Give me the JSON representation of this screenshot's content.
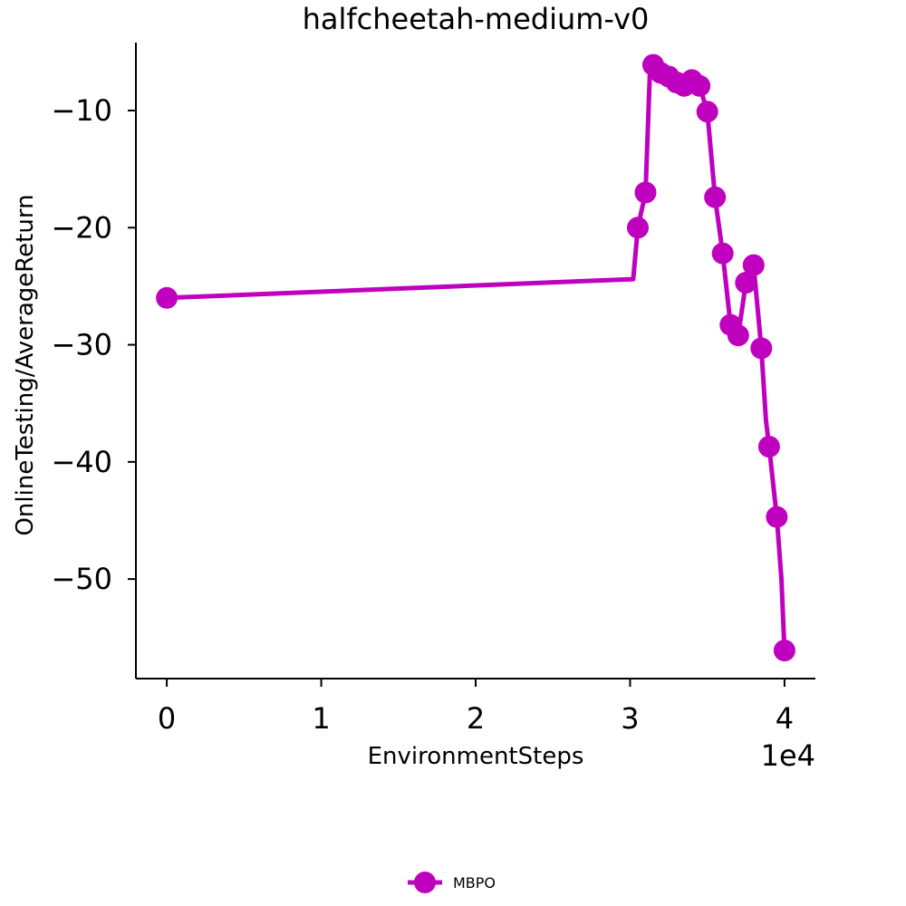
{
  "chart_data": {
    "type": "line",
    "title": "halfcheetah-medium-v0",
    "xlabel": "EnvironmentSteps",
    "ylabel": "OnlineTesting/AverageReturn",
    "x_offset_text": "1e4",
    "xlim": [
      -2000,
      42000
    ],
    "ylim": [
      -58.5,
      -4.2
    ],
    "x_ticks": [
      0,
      10000,
      20000,
      30000,
      40000
    ],
    "x_tick_labels": [
      "0",
      "1",
      "2",
      "3",
      "4"
    ],
    "y_ticks": [
      -10,
      -20,
      -30,
      -40,
      -50
    ],
    "y_tick_labels": [
      "−10",
      "−20",
      "−30",
      "−40",
      "−50"
    ],
    "grid": false,
    "legend_position": "bottom-center",
    "series": [
      {
        "name": "MBPO",
        "color": "#bf00bf",
        "line": [
          [
            0,
            -26.0
          ],
          [
            30200,
            -24.4
          ],
          [
            30500,
            -20.0
          ],
          [
            31000,
            -17.0
          ],
          [
            31300,
            -6.2
          ],
          [
            31500,
            -6.1
          ],
          [
            32000,
            -6.8
          ],
          [
            32500,
            -7.1
          ],
          [
            33000,
            -7.6
          ],
          [
            33500,
            -7.9
          ],
          [
            34000,
            -7.4
          ],
          [
            34500,
            -7.9
          ],
          [
            35000,
            -10.1
          ],
          [
            35500,
            -17.4
          ],
          [
            36000,
            -22.2
          ],
          [
            36500,
            -28.3
          ],
          [
            37000,
            -29.2
          ],
          [
            37500,
            -24.7
          ],
          [
            38000,
            -23.2
          ],
          [
            38500,
            -30.3
          ],
          [
            38800,
            -36.5
          ],
          [
            39000,
            -38.7
          ],
          [
            39500,
            -44.7
          ],
          [
            39800,
            -50.0
          ],
          [
            40000,
            -56.1
          ]
        ],
        "markers": [
          [
            0,
            -26.0
          ],
          [
            30500,
            -20.0
          ],
          [
            31000,
            -17.0
          ],
          [
            31500,
            -6.1
          ],
          [
            32000,
            -6.8
          ],
          [
            32500,
            -7.1
          ],
          [
            33000,
            -7.6
          ],
          [
            33500,
            -7.9
          ],
          [
            34000,
            -7.4
          ],
          [
            34500,
            -7.9
          ],
          [
            35000,
            -10.1
          ],
          [
            35500,
            -17.4
          ],
          [
            36000,
            -22.2
          ],
          [
            36500,
            -28.3
          ],
          [
            37000,
            -29.2
          ],
          [
            37500,
            -24.7
          ],
          [
            38000,
            -23.2
          ],
          [
            38500,
            -30.3
          ],
          [
            39000,
            -38.7
          ],
          [
            39500,
            -44.7
          ],
          [
            40000,
            -56.1
          ]
        ]
      }
    ]
  }
}
